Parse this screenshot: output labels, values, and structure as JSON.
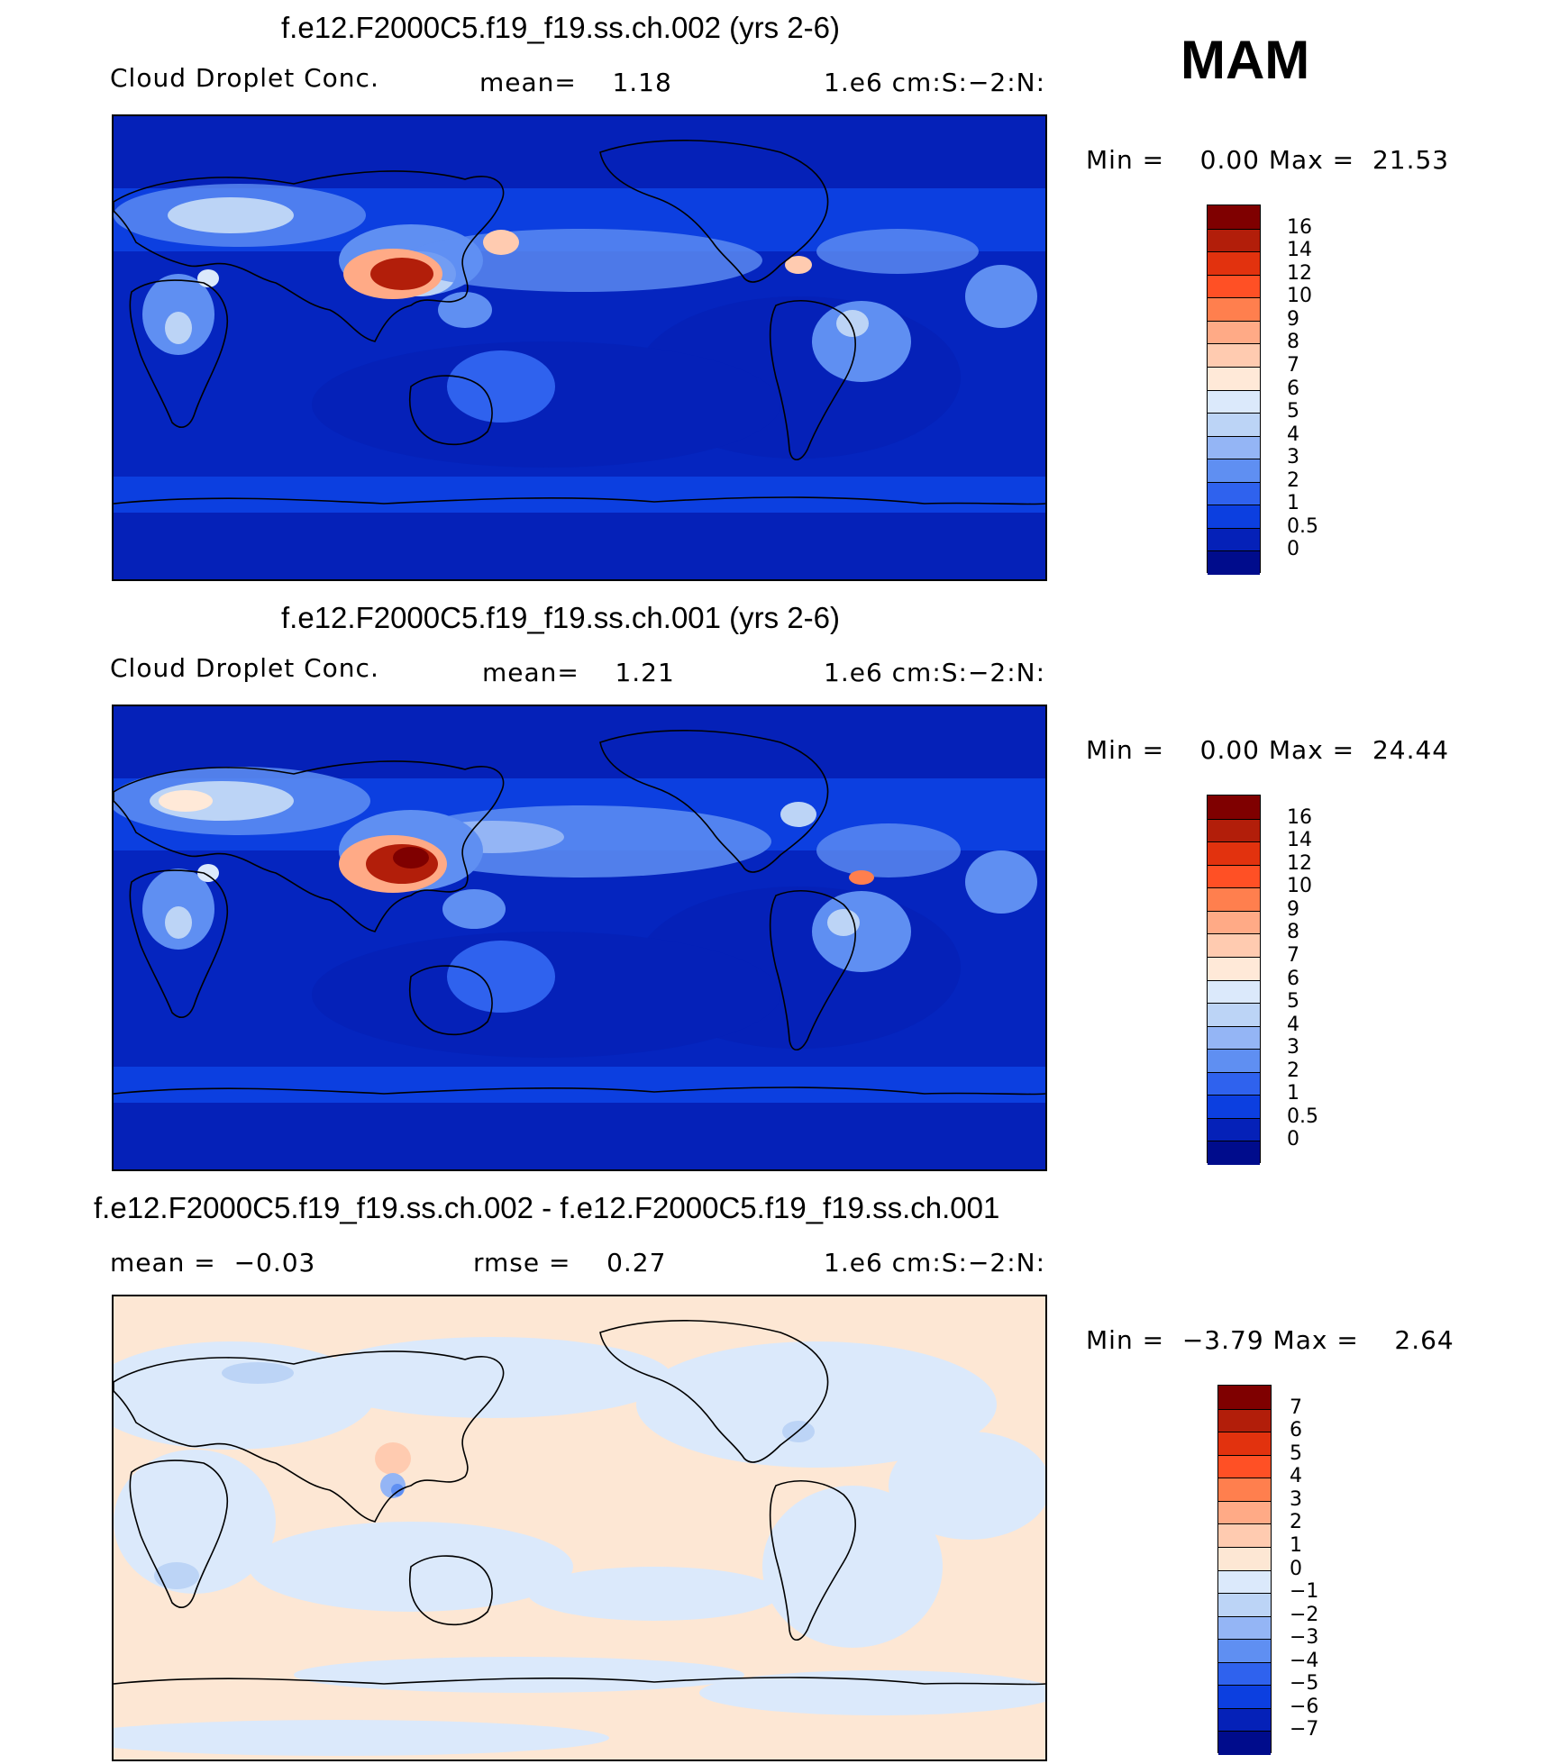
{
  "season": "MAM",
  "panels": [
    {
      "id": "p1",
      "title": "f.e12.F2000C5.f19_f19.ss.ch.002 (yrs 2-6)",
      "left_label": "Cloud Droplet Conc.",
      "center_label": "mean=    1.18",
      "right_label": "1.e6 cm:S:−2:N:",
      "minmax": "Min =    0.00 Max =  21.53",
      "colorbar_labels": [
        "16",
        "14",
        "12",
        "10",
        "9",
        "8",
        "7",
        "6",
        "5",
        "4",
        "3",
        "2",
        "1",
        "0.5",
        "0"
      ]
    },
    {
      "id": "p2",
      "title": "f.e12.F2000C5.f19_f19.ss.ch.001 (yrs 2-6)",
      "left_label": "Cloud Droplet Conc.",
      "center_label": "mean=    1.21",
      "right_label": "1.e6 cm:S:−2:N:",
      "minmax": "Min =    0.00 Max =  24.44",
      "colorbar_labels": [
        "16",
        "14",
        "12",
        "10",
        "9",
        "8",
        "7",
        "6",
        "5",
        "4",
        "3",
        "2",
        "1",
        "0.5",
        "0"
      ]
    },
    {
      "id": "p3",
      "title": "f.e12.F2000C5.f19_f19.ss.ch.002 - f.e12.F2000C5.f19_f19.ss.ch.001",
      "left_label": "mean =  −0.03",
      "center_label": "rmse =    0.27",
      "right_label": "1.e6 cm:S:−2:N:",
      "minmax": "Min =  −3.79 Max =    2.64",
      "colorbar_labels": [
        "7",
        "6",
        "5",
        "4",
        "3",
        "2",
        "1",
        "0",
        "−1",
        "−2",
        "−3",
        "−4",
        "−5",
        "−6",
        "−7"
      ]
    }
  ],
  "colors": {
    "abs_scale": [
      "#7f0000",
      "#b21e0a",
      "#e2320e",
      "#ff5025",
      "#ff7f4e",
      "#ffaa86",
      "#ffcbb0",
      "#ffe9d8",
      "#dbe9fb",
      "#bcd4f6",
      "#94b5f5",
      "#5f8ff2",
      "#2f62ee",
      "#0c3fe0",
      "#0521b8",
      "#000c8c"
    ],
    "diff_scale": [
      "#7f0000",
      "#b21e0a",
      "#e2320e",
      "#ff5025",
      "#ff7f4e",
      "#ffaa86",
      "#ffcbb0",
      "#fde7d4",
      "#dbe9fb",
      "#bcd4f6",
      "#94b5f5",
      "#5f8ff2",
      "#2f62ee",
      "#0c3fe0",
      "#0521b8",
      "#000c8c"
    ]
  }
}
